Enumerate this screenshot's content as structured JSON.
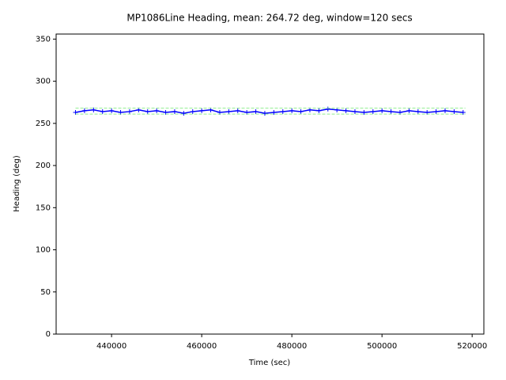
{
  "chart_data": {
    "type": "line",
    "title": "MP1086Line Heading, mean: 264.72 deg, window=120 secs",
    "x_label": "Time (sec)",
    "y_label": "Heading (deg)",
    "xlim": [
      427700,
      522600
    ],
    "ylim": [
      0,
      356
    ],
    "xticks": [
      440000,
      460000,
      480000,
      500000,
      520000
    ],
    "yticks": [
      0,
      50,
      100,
      150,
      200,
      250,
      300,
      350
    ],
    "series": [
      {
        "color": "#0000ff",
        "marker": "+",
        "linestyle": "solid",
        "x": [
          432000,
          434000,
          436000,
          438000,
          440000,
          442000,
          444000,
          446000,
          448000,
          450000,
          452000,
          454000,
          456000,
          458000,
          460000,
          462000,
          464000,
          466000,
          468000,
          470000,
          472000,
          474000,
          476000,
          478000,
          480000,
          482000,
          484000,
          486000,
          488000,
          490000,
          492000,
          494000,
          496000,
          498000,
          500000,
          502000,
          504000,
          506000,
          508000,
          510000,
          512000,
          514000,
          516000,
          518000
        ],
        "values": [
          263,
          265,
          266,
          264,
          265,
          263,
          264,
          266,
          264,
          265,
          263,
          264,
          262,
          264,
          265,
          266,
          263,
          264,
          265,
          263,
          264,
          262,
          263,
          264,
          265,
          264,
          266,
          265,
          267,
          266,
          265,
          264,
          263,
          264,
          265,
          264,
          263,
          265,
          264,
          263,
          264,
          265,
          264,
          263
        ]
      },
      {
        "color": "#90ee90",
        "marker": "none",
        "linestyle": "dashed",
        "x": [
          432000,
          518500
        ],
        "values": [
          268,
          268
        ]
      },
      {
        "color": "#90ee90",
        "marker": "none",
        "linestyle": "dashed",
        "x": [
          432000,
          518500
        ],
        "values": [
          261,
          261
        ]
      }
    ]
  }
}
